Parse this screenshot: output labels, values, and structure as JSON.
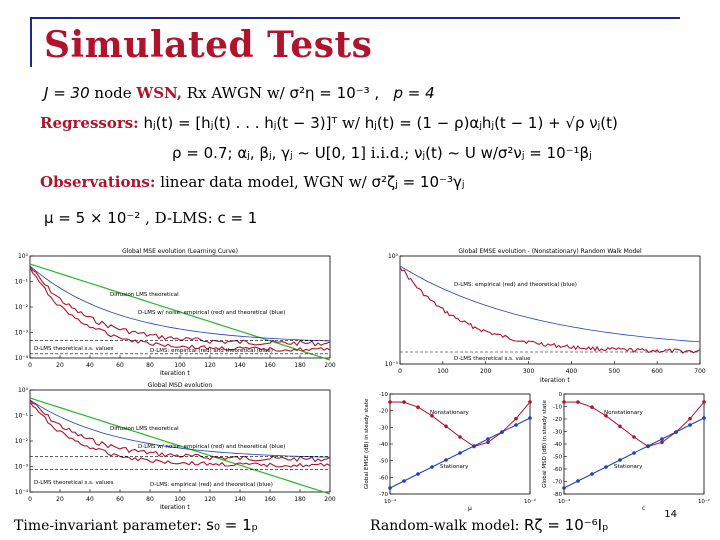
{
  "slide": {
    "title": "Simulated Tests",
    "page_number": "14"
  },
  "setup": {
    "line1": {
      "J": "J = 30",
      "a": "node",
      "wsn": "WSN,",
      "b": "Rx AWGN w/",
      "noise": "σ²η = 10⁻³ ,",
      "p": "p = 4"
    },
    "line2": {
      "label": "Regressors:",
      "h": "hⱼ(t) = [hⱼ(t) . . . hⱼ(t − 3)]ᵀ",
      "w": "w/",
      "model": "hⱼ(t) = (1 − ρ)αⱼhⱼ(t − 1) + √ρ νⱼ(t)"
    },
    "line3": {
      "rho": "ρ = 0.7;",
      "dist": "αⱼ, βⱼ, γⱼ ∼ U[0, 1]",
      "iid": "i.i.d.;",
      "nu": "νⱼ(t) ∼ U",
      "w": "w/σ²νⱼ = 10⁻¹βⱼ"
    },
    "line4": {
      "label": "Observations:",
      "text": "linear data model, WGN w/",
      "var": "σ²ζⱼ = 10⁻³γⱼ"
    },
    "line5": {
      "mu": "μ = 5 × 10⁻²",
      "dlms": ", D-LMS:",
      "c": "c = 1"
    }
  },
  "captions": {
    "left": "Time-invariant parameter:",
    "left_math": "s₀ = 1ₚ",
    "right": "Random-walk model:",
    "right_math": "Rζ = 10⁻⁶Iₚ"
  },
  "charts": {
    "tl": {
      "title": "Global MSE evolution (Learning Curve)",
      "xlabel": "Iteration t",
      "yticks": [
        "10⁰",
        "10⁻¹",
        "10⁻²",
        "10⁻³",
        "10⁻⁴"
      ],
      "xticks": [
        "0",
        "20",
        "40",
        "60",
        "80",
        "100",
        "120",
        "140",
        "160",
        "180",
        "200"
      ],
      "annotations": [
        "Diffusion LMS theoretical",
        "D-LMS w/ noise: empirical (red) and theoretical (blue)",
        "D-LMS: empirical (red) and theoretical (blue)",
        "D-LMS theoretical s.s. values"
      ]
    },
    "bl": {
      "title": "Global MSD evolution",
      "xlabel": "Iteration t",
      "yticks": [
        "10⁰",
        "10⁻¹",
        "10⁻²",
        "10⁻³",
        "10⁻⁴"
      ],
      "xticks": [
        "0",
        "20",
        "40",
        "60",
        "80",
        "100",
        "120",
        "140",
        "160",
        "180",
        "200"
      ],
      "annotations": [
        "Diffusion LMS theoretical",
        "D-LMS w/ noise: empirical (red) and theoretical (blue)",
        "D-LMS: empirical (red) and theoretical (blue)",
        "D-LMS theoretical s.s. values"
      ]
    },
    "tr": {
      "title": "Global EMSE evolution - (Nonstationary) Random Walk Model",
      "xlabel": "Iteration t",
      "yticks": [
        "10⁰",
        "10⁻⁵"
      ],
      "xticks": [
        "0",
        "100",
        "200",
        "300",
        "400",
        "500",
        "600",
        "700"
      ],
      "annotations": [
        "D-LMS: empirical (red) and theoretical (blue)",
        "D-LMS theoretical s.s. value"
      ]
    },
    "br1": {
      "ylabel": "Global EMSE (dB) in steady state",
      "xlabel": "μ",
      "yticks": [
        "-10",
        "-20",
        "-30",
        "-40",
        "-50",
        "-60",
        "-70"
      ],
      "xticks": [
        "10⁻⁴",
        "10⁻²"
      ],
      "annotations": [
        "Nonstationary",
        "Stationary"
      ]
    },
    "br2": {
      "ylabel": "Global MSD (dB) in steady state",
      "xlabel": "c",
      "yticks": [
        "0",
        "-10",
        "-20",
        "-30",
        "-40",
        "-50",
        "-60",
        "-70",
        "-80"
      ],
      "xticks": [
        "10⁻⁴",
        "10⁻²"
      ],
      "annotations": [
        "Nonstationary",
        "Stationary"
      ]
    }
  },
  "colors": {
    "title": "#b0142c",
    "frame": "#1a2a8a",
    "empirical": "#b0142c",
    "theoretical": "#1f3fbf",
    "diffusion": "#2bb52b"
  }
}
